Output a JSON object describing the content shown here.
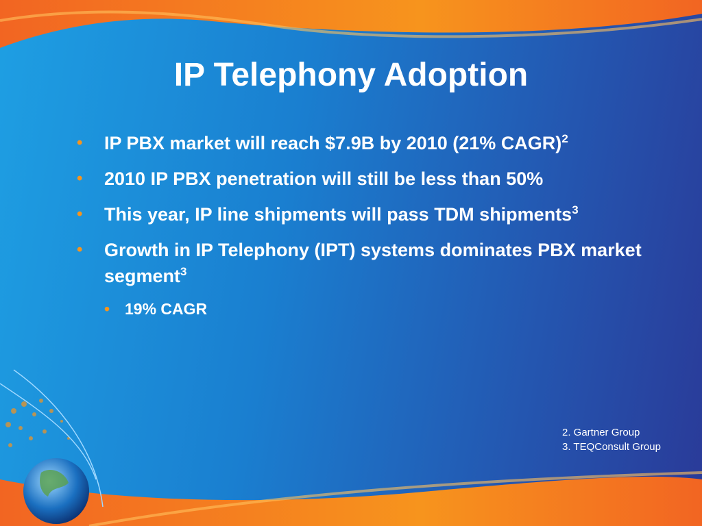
{
  "slide": {
    "title": "IP Telephony Adoption",
    "bullets": [
      {
        "text": "IP PBX market will reach $7.9B by 2010 (21% CAGR)",
        "sup": "2"
      },
      {
        "text": "2010 IP PBX penetration will still be less than 50%"
      },
      {
        "text": "This year, IP line shipments will pass TDM shipments",
        "sup": "3"
      },
      {
        "text": "Growth in IP Telephony (IPT) systems dominates PBX market segment",
        "sup": "3",
        "subbullets": [
          "19% CAGR"
        ]
      }
    ],
    "footnotes": [
      "2. Gartner Group",
      "3. TEQConsult Group"
    ]
  }
}
